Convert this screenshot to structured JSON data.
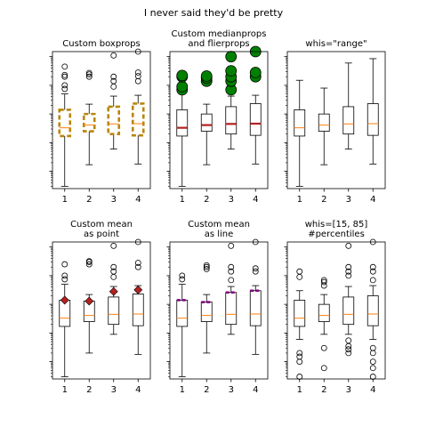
{
  "figure": {
    "suptitle": "I never said they'd be pretty"
  },
  "chart_data": [
    {
      "type": "boxplot",
      "title": "Custom boxprops",
      "yscale": "log",
      "categories": [
        "1",
        "2",
        "3",
        "4"
      ],
      "box_style": "custom-boxprops",
      "series": [
        {
          "category": "1",
          "whislo": 0.03,
          "q1": 1.7,
          "median": 3.3,
          "q3": 14,
          "whishi": 50,
          "fliers": [
            75,
            100,
            200,
            230,
            450
          ]
        },
        {
          "category": "2",
          "whislo": 0.17,
          "q1": 2.5,
          "median": 4.1,
          "q3": 10,
          "whishi": 22,
          "fliers": [
            200,
            240,
            270
          ]
        },
        {
          "category": "3",
          "whislo": 0.6,
          "q1": 2.0,
          "median": 4.5,
          "q3": 18,
          "whishi": 42,
          "fliers": [
            90,
            140,
            200,
            1100
          ]
        },
        {
          "category": "4",
          "whislo": 0.18,
          "q1": 1.8,
          "median": 4.6,
          "q3": 23,
          "whishi": 45,
          "fliers": [
            140,
            210,
            280,
            1900
          ]
        }
      ]
    },
    {
      "type": "boxplot",
      "title": "Custom medianprops\nand flierprops",
      "yscale": "log",
      "categories": [
        "1",
        "2",
        "3",
        "4"
      ],
      "box_style": "custom-median-flier",
      "series": [
        {
          "category": "1",
          "whislo": 0.03,
          "q1": 1.7,
          "median": 3.3,
          "q3": 14,
          "whishi": 50,
          "fliers": [
            70,
            90,
            200,
            220
          ]
        },
        {
          "category": "2",
          "whislo": 0.17,
          "q1": 2.5,
          "median": 4.1,
          "q3": 10,
          "whishi": 22,
          "fliers": [
            140,
            180,
            210
          ]
        },
        {
          "category": "3",
          "whislo": 0.6,
          "q1": 2.0,
          "median": 4.5,
          "q3": 18,
          "whishi": 42,
          "fliers": [
            70,
            140,
            200,
            320,
            1000
          ]
        },
        {
          "category": "4",
          "whislo": 0.18,
          "q1": 1.8,
          "median": 4.6,
          "q3": 23,
          "whishi": 45,
          "fliers": [
            200,
            280,
            1800
          ]
        }
      ]
    },
    {
      "type": "boxplot",
      "title": "whis=\"range\"",
      "yscale": "log",
      "categories": [
        "1",
        "2",
        "3",
        "4"
      ],
      "box_style": "default",
      "series": [
        {
          "category": "1",
          "whislo": 0.03,
          "q1": 1.7,
          "median": 3.3,
          "q3": 14,
          "whishi": 150
        },
        {
          "category": "2",
          "whislo": 0.17,
          "q1": 2.5,
          "median": 4.1,
          "q3": 10,
          "whishi": 80
        },
        {
          "category": "3",
          "whislo": 0.6,
          "q1": 2.0,
          "median": 4.5,
          "q3": 18,
          "whishi": 600
        },
        {
          "category": "4",
          "whislo": 0.18,
          "q1": 1.8,
          "median": 4.6,
          "q3": 23,
          "whishi": 850
        }
      ]
    },
    {
      "type": "boxplot",
      "title": "Custom mean\nas point",
      "yscale": "log",
      "categories": [
        "1",
        "2",
        "3",
        "4"
      ],
      "box_style": "mean-point",
      "series": [
        {
          "category": "1",
          "whislo": 0.03,
          "q1": 1.7,
          "median": 3.3,
          "q3": 14,
          "whishi": 50,
          "mean": 14,
          "fliers": [
            75,
            100,
            250
          ]
        },
        {
          "category": "2",
          "whislo": 0.2,
          "q1": 2.5,
          "median": 4.1,
          "q3": 13,
          "whishi": 22,
          "mean": 13,
          "fliers": [
            250,
            300,
            320
          ]
        },
        {
          "category": "3",
          "whislo": 0.9,
          "q1": 2.0,
          "median": 4.5,
          "q3": 18,
          "whishi": 42,
          "mean": 28,
          "fliers": [
            90,
            140,
            200,
            1100
          ]
        },
        {
          "category": "4",
          "whislo": 0.18,
          "q1": 1.8,
          "median": 4.6,
          "q3": 23,
          "whishi": 45,
          "mean": 32,
          "fliers": [
            200,
            280,
            4000
          ]
        }
      ]
    },
    {
      "type": "boxplot",
      "title": "Custom mean\nas line",
      "yscale": "log",
      "categories": [
        "1",
        "2",
        "3",
        "4"
      ],
      "box_style": "mean-line",
      "series": [
        {
          "category": "1",
          "whislo": 0.03,
          "q1": 1.7,
          "median": 3.3,
          "q3": 14,
          "whishi": 50,
          "mean": 14,
          "fliers": [
            75,
            100
          ]
        },
        {
          "category": "2",
          "whislo": 0.2,
          "q1": 2.5,
          "median": 4.1,
          "q3": 12,
          "whishi": 22,
          "mean": 12,
          "fliers": [
            170,
            200,
            230
          ]
        },
        {
          "category": "3",
          "whislo": 0.9,
          "q1": 2.0,
          "median": 4.5,
          "q3": 26,
          "whishi": 42,
          "mean": 26,
          "fliers": [
            70,
            140,
            200,
            1100
          ]
        },
        {
          "category": "4",
          "whislo": 0.18,
          "q1": 1.8,
          "median": 4.6,
          "q3": 30,
          "whishi": 45,
          "mean": 30,
          "fliers": [
            140,
            180,
            4000
          ]
        }
      ]
    },
    {
      "type": "boxplot",
      "title": "whis=[15, 85]\n#percentiles",
      "yscale": "log",
      "categories": [
        "1",
        "2",
        "3",
        "4"
      ],
      "box_style": "default",
      "series": [
        {
          "category": "1",
          "whislo": 0.6,
          "q1": 1.7,
          "median": 3.3,
          "q3": 14,
          "whishi": 30,
          "fliers": [
            0.03,
            0.1,
            0.15,
            0.2,
            90,
            140
          ]
        },
        {
          "category": "2",
          "whislo": 0.9,
          "q1": 2.5,
          "median": 4.1,
          "q3": 10,
          "whishi": 22,
          "fliers": [
            0.06,
            0.3,
            45,
            60,
            70
          ]
        },
        {
          "category": "3",
          "whislo": 0.9,
          "q1": 2.0,
          "median": 4.5,
          "q3": 18,
          "whishi": 42,
          "fliers": [
            0.2,
            0.27,
            0.35,
            0.55,
            100,
            140,
            200,
            1100
          ]
        },
        {
          "category": "4",
          "whislo": 0.6,
          "q1": 1.8,
          "median": 4.6,
          "q3": 20,
          "whishi": 45,
          "fliers": [
            0.03,
            0.06,
            0.1,
            0.2,
            0.3,
            70,
            140,
            200,
            4000
          ]
        }
      ]
    }
  ],
  "colors": {
    "box": "#000000",
    "default_median": "#ff7f0e",
    "custom_box": "#b8860b",
    "custom_median": "#b22222",
    "flier_fill": "#008000",
    "mean_point": "#b22222",
    "mean_line": "#800080"
  }
}
